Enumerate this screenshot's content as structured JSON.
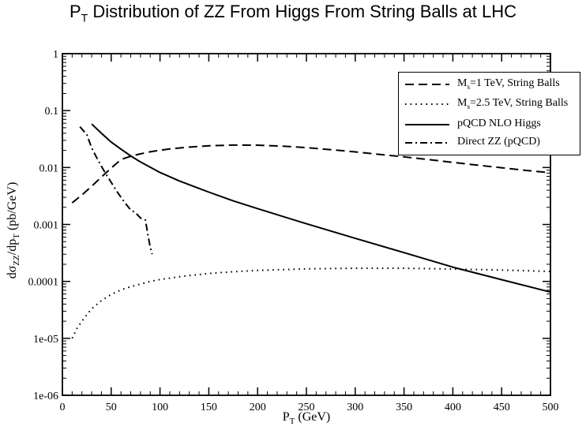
{
  "chart_data": {
    "type": "line",
    "title": {
      "pre": "P",
      "sub": "T",
      "post": " Distribution of ZZ From Higgs From String Balls at LHC"
    },
    "xlabel": {
      "pre": "P",
      "sub": "T",
      "post": " (GeV)"
    },
    "ylabel": {
      "pre": "dσ",
      "sub1": "ZZ",
      "mid": "/dp",
      "sub2": "T",
      "post": "  (pb/GeV)"
    },
    "x_range": [
      0,
      500
    ],
    "y_range": [
      1e-06,
      1
    ],
    "y_scale": "log",
    "grid": false,
    "legend_position": "top-right",
    "x_ticks": [
      "0",
      "50",
      "100",
      "150",
      "200",
      "250",
      "300",
      "350",
      "400",
      "450",
      "500"
    ],
    "y_ticks": [
      "1e-06",
      "1e-05",
      "0.0001",
      "0.001",
      "0.01",
      "0.1",
      "1"
    ],
    "series": [
      {
        "legend": {
          "pre": "M",
          "sub": "s",
          "post": "=1 TeV, String Balls"
        },
        "style": "dashed",
        "x": [
          10,
          20,
          30,
          40,
          50,
          60,
          70,
          80,
          90,
          100,
          110,
          125,
          150,
          175,
          200,
          225,
          250,
          275,
          300,
          325,
          350,
          375,
          400,
          425,
          450,
          475,
          500
        ],
        "y": [
          0.0024,
          0.0033,
          0.0047,
          0.0068,
          0.0098,
          0.0138,
          0.0158,
          0.0174,
          0.0189,
          0.0201,
          0.0212,
          0.0225,
          0.0241,
          0.0248,
          0.0247,
          0.0238,
          0.0224,
          0.0206,
          0.0188,
          0.017,
          0.0154,
          0.0138,
          0.0123,
          0.011,
          0.0099,
          0.0089,
          0.0081
        ]
      },
      {
        "legend": {
          "pre": "M",
          "sub": "s",
          "post": "=2.5 TeV, String Balls"
        },
        "style": "dotted",
        "x": [
          10,
          15,
          20,
          25,
          30,
          40,
          50,
          60,
          70,
          80,
          90,
          100,
          125,
          150,
          175,
          200,
          250,
          300,
          350,
          400,
          450,
          500
        ],
        "y": [
          1e-05,
          1.5e-05,
          2e-05,
          2.6e-05,
          3.3e-05,
          4.6e-05,
          5.9e-05,
          7.1e-05,
          8.1e-05,
          9e-05,
          0.0001,
          0.000108,
          0.000124,
          0.000138,
          0.000148,
          0.000156,
          0.000166,
          0.00017,
          0.00017,
          0.000165,
          0.000158,
          0.00015
        ]
      },
      {
        "legend": {
          "pre": "",
          "sub": "",
          "post": " pQCD NLO Higgs"
        },
        "style": "solid",
        "x": [
          30,
          40,
          50,
          60,
          70,
          80,
          100,
          120,
          150,
          175,
          200,
          250,
          300,
          350,
          400,
          450,
          500
        ],
        "y": [
          0.058,
          0.04,
          0.028,
          0.021,
          0.016,
          0.0125,
          0.0082,
          0.0058,
          0.0037,
          0.0026,
          0.0019,
          0.00103,
          0.00057,
          0.00032,
          0.000178,
          0.000107,
          6.5e-05
        ]
      },
      {
        "legend": {
          "pre": "",
          "sub": "",
          "post": "Direct ZZ (pQCD)"
        },
        "style": "dashdot",
        "x": [
          18,
          25,
          30,
          35,
          40,
          45,
          50,
          55,
          60,
          65,
          70,
          75,
          80,
          85,
          88,
          90,
          92
        ],
        "y": [
          0.052,
          0.038,
          0.022,
          0.015,
          0.0105,
          0.0075,
          0.0055,
          0.004,
          0.003,
          0.0023,
          0.0018,
          0.0016,
          0.0013,
          0.0012,
          0.0006,
          0.0004,
          0.0003
        ]
      }
    ]
  }
}
